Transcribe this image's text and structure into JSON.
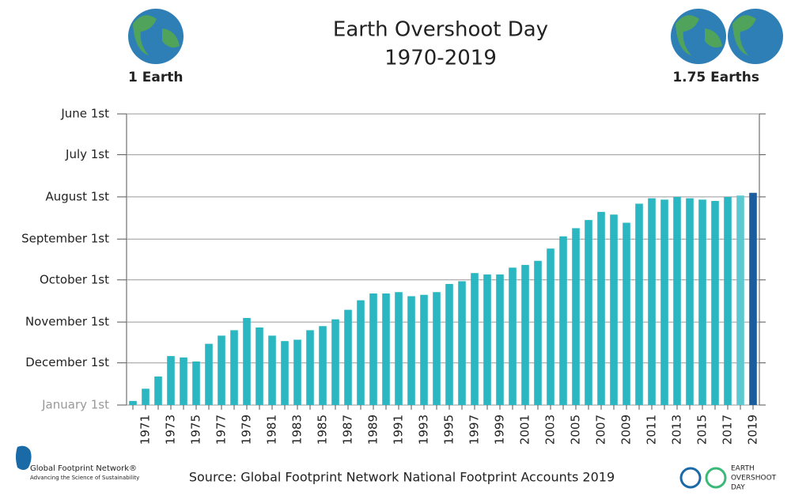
{
  "chart_data": {
    "type": "bar",
    "title": "Earth Overshoot Day",
    "subtitle": "1970-2019",
    "annotations": {
      "left": "1 Earth",
      "right": "1.75 Earths"
    },
    "source": "Source: Global Footprint Network National Footprint Accounts 2019",
    "logos": {
      "gfn": "Global Footprint Network®",
      "gfn_tagline": "Advancing the Science of Sustainability",
      "eod": [
        "EARTH",
        "OVERSHOOT",
        "DAY"
      ]
    },
    "categories": [
      null,
      1971,
      null,
      1973,
      null,
      1975,
      null,
      1977,
      null,
      1979,
      null,
      1981,
      null,
      1983,
      null,
      1985,
      null,
      1987,
      null,
      1989,
      null,
      1991,
      null,
      1993,
      null,
      1995,
      null,
      1997,
      null,
      1999,
      null,
      2001,
      null,
      2003,
      null,
      2005,
      null,
      2007,
      null,
      2009,
      null,
      2011,
      null,
      2013,
      null,
      2015,
      null,
      2017,
      null,
      2019
    ],
    "values": [
      363,
      354,
      345,
      330,
      331,
      334,
      321,
      315,
      311,
      302,
      309,
      315,
      319,
      318,
      311,
      308,
      303,
      296,
      289,
      284,
      284,
      283,
      286,
      285,
      283,
      277,
      275,
      269,
      270,
      270,
      265,
      263,
      260,
      251,
      242,
      236,
      230,
      224,
      226,
      232,
      218,
      214,
      215,
      213,
      214,
      215,
      216,
      213,
      212,
      210
    ],
    "color": "#2bb7c1",
    "colors": [
      "#2bb7c1",
      "#2bb7c1",
      "#2bb7c1",
      "#2bb7c1",
      "#2bb7c1",
      "#2bb7c1",
      "#2bb7c1",
      "#2bb7c1",
      "#2bb7c1",
      "#2bb7c1",
      "#2bb7c1",
      "#2bb7c1",
      "#2bb7c1",
      "#2bb7c1",
      "#2bb7c1",
      "#2bb7c1",
      "#2bb7c1",
      "#2bb7c1",
      "#2bb7c1",
      "#2bb7c1",
      "#2bb7c1",
      "#2bb7c1",
      "#2bb7c1",
      "#2bb7c1",
      "#2bb7c1",
      "#2bb7c1",
      "#2bb7c1",
      "#2bb7c1",
      "#2bb7c1",
      "#2bb7c1",
      "#2bb7c1",
      "#2bb7c1",
      "#2bb7c1",
      "#2bb7c1",
      "#2bb7c1",
      "#2bb7c1",
      "#2bb7c1",
      "#2bb7c1",
      "#2bb7c1",
      "#2bb7c1",
      "#2bb7c1",
      "#2bb7c1",
      "#2bb7c1",
      "#2bb7c1",
      "#2bb7c1",
      "#2bb7c1",
      "#2bb7c1",
      "#2bb7c1",
      "#5cc9d0",
      "#1b5c9c"
    ],
    "ylim": [
      366,
      152
    ],
    "yticks": [
      {
        "value": 152,
        "label": "June 1st"
      },
      {
        "value": 182,
        "label": "July 1st"
      },
      {
        "value": 213,
        "label": "August 1st"
      },
      {
        "value": 244,
        "label": "September 1st"
      },
      {
        "value": 274,
        "label": "October 1st"
      },
      {
        "value": 305,
        "label": "November 1st"
      },
      {
        "value": 335,
        "label": "December 1st"
      },
      {
        "value": 366,
        "label": "January 1st"
      }
    ],
    "grid": true
  }
}
